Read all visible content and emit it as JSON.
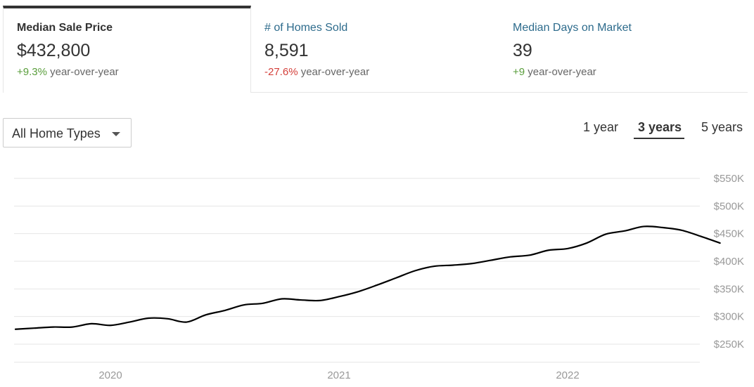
{
  "stats": [
    {
      "label": "Median Sale Price",
      "value": "$432,800",
      "change": "+9.3%",
      "change_dir": "up",
      "change_suffix": " year-over-year",
      "active": true
    },
    {
      "label": "# of Homes Sold",
      "value": "8,591",
      "change": "-27.6%",
      "change_dir": "down",
      "change_suffix": " year-over-year",
      "active": false
    },
    {
      "label": "Median Days on Market",
      "value": "39",
      "change": "+9",
      "change_dir": "up",
      "change_suffix": " year-over-year",
      "active": false
    }
  ],
  "filter": {
    "home_type": "All Home Types"
  },
  "ranges": [
    {
      "label": "1 year",
      "active": false
    },
    {
      "label": "3 years",
      "active": true
    },
    {
      "label": "5 years",
      "active": false
    }
  ],
  "colors": {
    "line": "#000000",
    "grid": "#e6e6e6",
    "up": "#5a9e3c",
    "down": "#d43f3a",
    "link": "#2d6b8c"
  },
  "chart_data": {
    "type": "line",
    "title": "",
    "xlabel": "",
    "ylabel": "",
    "x_ticks": [
      "2020",
      "2021",
      "2022"
    ],
    "y_ticks": [
      "$250K",
      "$300K",
      "$350K",
      "$400K",
      "$450K",
      "$500K",
      "$550K"
    ],
    "ylim": [
      230000,
      560000
    ],
    "grid": true,
    "series": [
      {
        "x": [
          "2019-08",
          "2019-09",
          "2019-10",
          "2019-11",
          "2019-12",
          "2020-01",
          "2020-02",
          "2020-03",
          "2020-04",
          "2020-05",
          "2020-06",
          "2020-07",
          "2020-08",
          "2020-09",
          "2020-10",
          "2020-11",
          "2020-12",
          "2021-01",
          "2021-02",
          "2021-03",
          "2021-04",
          "2021-05",
          "2021-06",
          "2021-07",
          "2021-08",
          "2021-09",
          "2021-10",
          "2021-11",
          "2021-12",
          "2022-01",
          "2022-02",
          "2022-03",
          "2022-04",
          "2022-05",
          "2022-06",
          "2022-07",
          "2022-08",
          "2022-09"
        ],
        "values": [
          277000,
          279000,
          281000,
          281000,
          287000,
          284000,
          290000,
          297000,
          296000,
          290000,
          303000,
          311000,
          321000,
          324000,
          332000,
          330000,
          329000,
          336000,
          345000,
          357000,
          370000,
          383000,
          391000,
          393000,
          396000,
          402000,
          408000,
          411000,
          420000,
          423000,
          433000,
          449000,
          455000,
          463000,
          461000,
          456000,
          445000,
          433000
        ]
      }
    ]
  }
}
